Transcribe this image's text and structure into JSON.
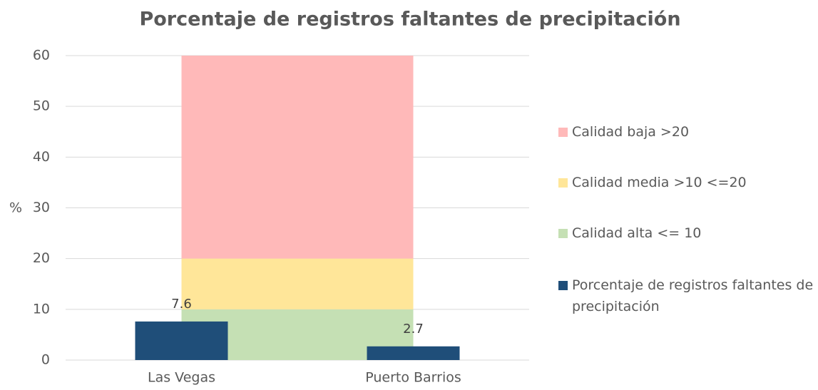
{
  "chart_data": {
    "type": "combo",
    "title": "Porcentaje de registros faltantes de precipitación",
    "ylabel": "%",
    "categories": [
      "Las Vegas",
      "Puerto Barrios"
    ],
    "series": [
      {
        "name": "Calidad alta <= 10",
        "type": "area",
        "color": "#c5e0b4",
        "values": [
          10,
          10
        ]
      },
      {
        "name": "Calidad media >10 <=20",
        "type": "area",
        "color": "#ffe699",
        "values": [
          10,
          10
        ]
      },
      {
        "name": "Calidad baja >20",
        "type": "area",
        "color": "#ffb9b9",
        "values": [
          40,
          40
        ]
      },
      {
        "name": "Porcentaje de registros faltantes de precipitación",
        "type": "bar",
        "color": "#1f4e79",
        "values": [
          7.6,
          2.7
        ]
      }
    ],
    "legend_order": [
      2,
      1,
      0,
      3
    ],
    "legend": "right",
    "ylim": [
      0,
      60
    ],
    "yticks": [
      0,
      10,
      20,
      30,
      40,
      50,
      60
    ],
    "grid": true
  }
}
